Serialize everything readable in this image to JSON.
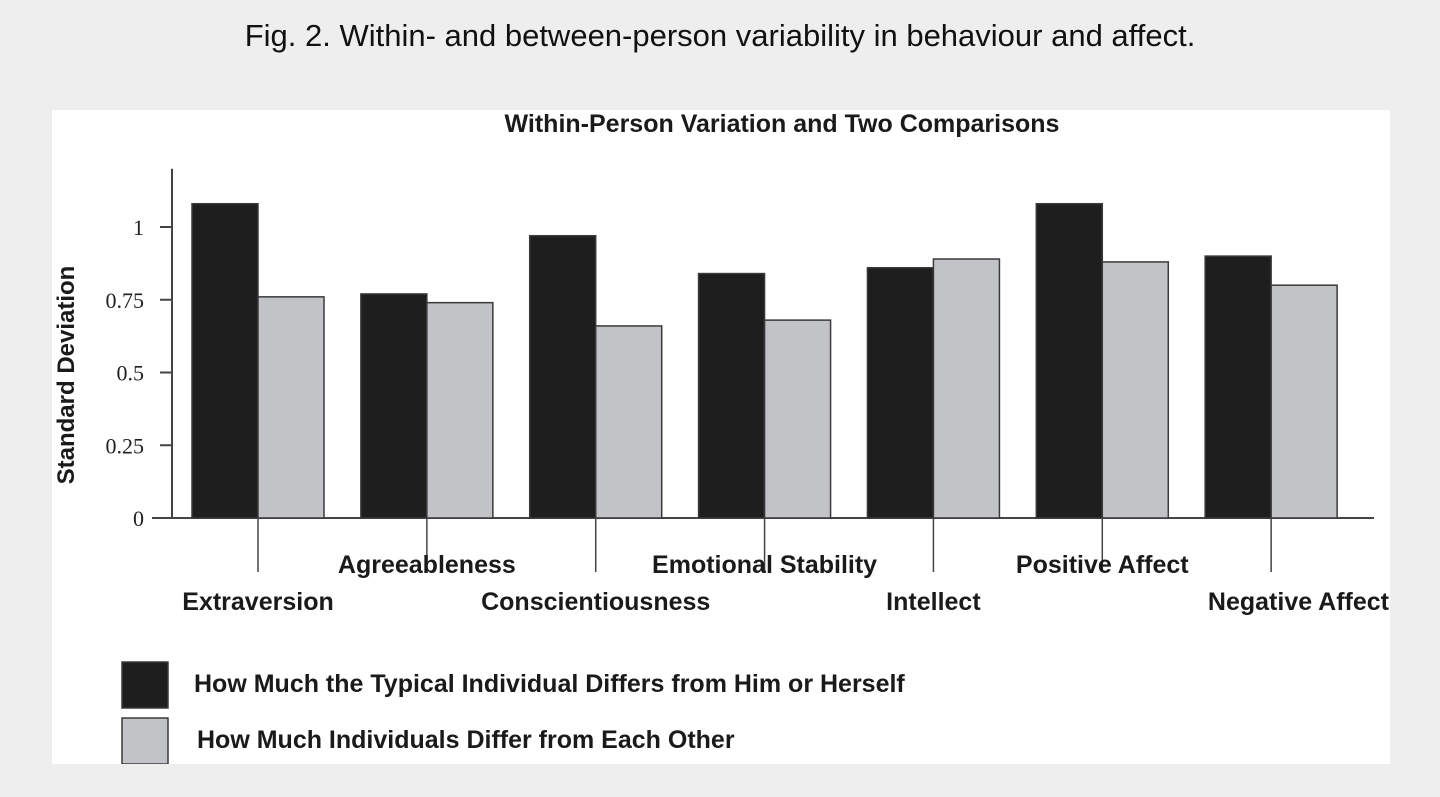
{
  "caption": "Fig. 2. Within- and between-person variability in behaviour and affect.",
  "colors": {
    "within": "#1e1e1e",
    "between": "#c2c3c7",
    "axis": "#444444"
  },
  "chart_data": {
    "type": "bar",
    "title": "Within-Person Variation and Two Comparisons",
    "xlabel": "",
    "ylabel": "Standard Deviation",
    "ylim": [
      0,
      1.2
    ],
    "yticks": [
      0,
      0.25,
      0.5,
      0.75,
      1
    ],
    "ytick_labels": [
      "0",
      "0.25",
      "0.5",
      "0.75",
      "1"
    ],
    "categories": [
      "Extraversion",
      "Agreeableness",
      "Conscientiousness",
      "Emotional Stability",
      "Intellect",
      "Positive Affect",
      "Negative Affect"
    ],
    "series": [
      {
        "name": "How Much the Typical Individual Differs from Him or Herself",
        "values": [
          1.08,
          0.77,
          0.97,
          0.84,
          0.86,
          1.08,
          0.9
        ]
      },
      {
        "name": "How Much Individuals Differ from Each Other",
        "values": [
          0.76,
          0.74,
          0.66,
          0.68,
          0.89,
          0.88,
          0.8
        ]
      }
    ],
    "legend_position": "bottom",
    "grid": false
  }
}
